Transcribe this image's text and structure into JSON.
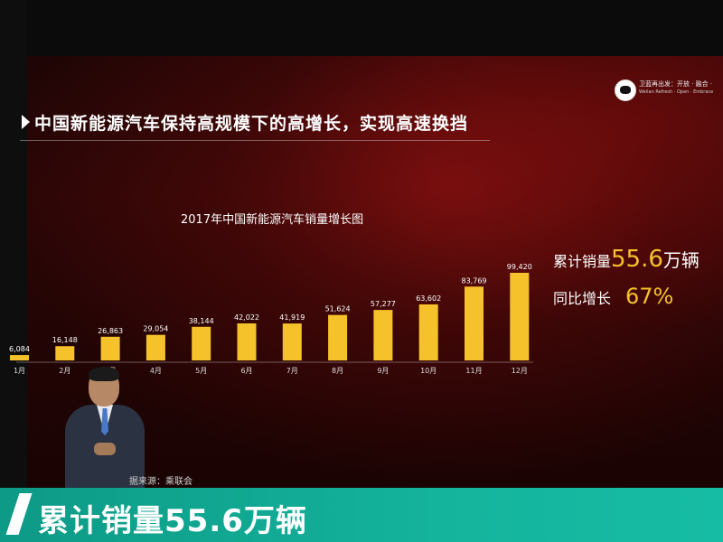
{
  "slide": {
    "title": "中国新能源汽车保持高规模下的高增长，实现高速换挡",
    "logo_cn": "卫蓝再出发：开放 · 融合 ·",
    "logo_en": "Weilan Refresh · Open · Embrace"
  },
  "chart_data": {
    "type": "bar",
    "title": "2017年中国新能源汽车销量增长图",
    "categories": [
      "1月",
      "2月",
      "3月",
      "4月",
      "5月",
      "6月",
      "7月",
      "8月",
      "9月",
      "10月",
      "11月",
      "12月"
    ],
    "values": [
      6084,
      16148,
      26863,
      29054,
      38144,
      42022,
      41919,
      51624,
      57277,
      63602,
      83769,
      99420
    ],
    "value_labels": [
      "6,084",
      "16,148",
      "26,863",
      "29,054",
      "38,144",
      "42,022",
      "41,919",
      "51,624",
      "57,277",
      "63,602",
      "83,769",
      "99,420"
    ],
    "ylim": [
      0,
      100000
    ],
    "grid": false,
    "bar_color": "#f6c22b"
  },
  "stats": {
    "total_label": "累计销量",
    "total_value": "55.6",
    "total_unit": "万辆",
    "growth_label": "同比增长",
    "growth_value": "67%"
  },
  "source": "据来源：乘联会",
  "caption": "累计销量55.6万辆"
}
